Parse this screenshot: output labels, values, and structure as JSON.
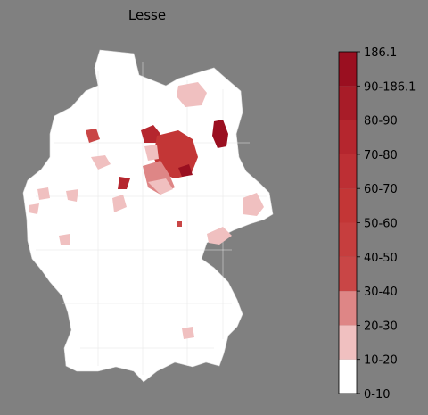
{
  "title": "Lesse",
  "colorbar": {
    "ticks": [
      "0-10",
      "10-20",
      "20-30",
      "30-40",
      "40-50",
      "50-60",
      "60-70",
      "70-80",
      "80-90",
      "90-186.1",
      "186.1"
    ],
    "colors": [
      "#ffffff",
      "#f0c0c0",
      "#de8686",
      "#c94646",
      "#c63e3e",
      "#c33636",
      "#bd2f34",
      "#b5262e",
      "#a81c28",
      "#9a0f20"
    ]
  }
}
